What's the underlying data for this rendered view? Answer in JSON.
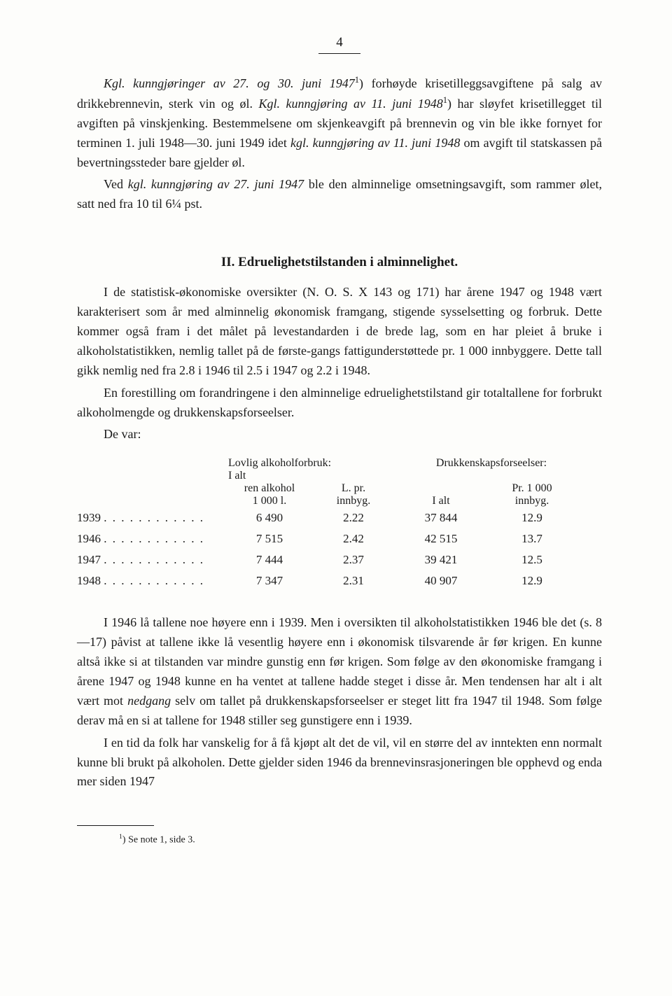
{
  "pageNumber": "4",
  "para1_a": "Kgl. kunngjøringer av 27. og 30. juni 1947",
  "para1_b": ") forhøyde krisetilleggsavgiftene på salg av drikkebrennevin, sterk vin og øl. ",
  "para1_c": "Kgl. kunngjøring av 11. juni 1948",
  "para1_d": ") har sløyfet krisetillegget til avgiften på vinskjenking. Bestemmelsene om skjenkeavgift på brennevin og vin ble ikke fornyet for terminen 1. juli 1948—30. juni 1949 idet ",
  "para1_e": "kgl. kunngjøring av 11. juni 1948",
  "para1_f": " om avgift til statskassen på bevertningssteder bare gjelder øl.",
  "para2_a": "Ved ",
  "para2_b": "kgl. kunngjøring av 27. juni 1947",
  "para2_c": " ble den alminnelige omsetningsavgift, som rammer ølet, satt ned fra 10 til 6¼ pst.",
  "sectionTitle": "II.  Edruelighetstilstanden i alminnelighet.",
  "para3": "I de statistisk-økonomiske oversikter (N. O. S. X 143 og 171) har årene 1947 og 1948 vært karakterisert som år med alminnelig økonomisk framgang, stigende sysselsetting og forbruk. Dette kommer også fram i det målet på levestandarden i de brede lag, som en har pleiet å bruke i alkoholstatistikken, nemlig tallet på de første-gangs fattigunderstøttede pr. 1 000 innbyggere. Dette tall gikk nemlig ned fra 2.8 i 1946 til 2.5 i 1947 og 2.2 i 1948.",
  "para4": "En forestilling om forandringene i den alminnelige edruelighetstilstand gir totaltallene for forbrukt alkoholmengde og drukkenskapsforseelser.",
  "para5": "De var:",
  "table": {
    "group1Label": "Lovlig alkoholforbruk:",
    "group2Label": "Drukkenskapsforseelser:",
    "subIalt": "I alt",
    "colA1": "ren alkohol",
    "colA2": "1 000 l.",
    "colB1": "L. pr.",
    "colB2": "innbyg.",
    "colC": "I alt",
    "colD1": "Pr. 1 000",
    "colD2": "innbyg.",
    "rows": [
      {
        "year": "1939",
        "a": "6 490",
        "b": "2.22",
        "c": "37 844",
        "d": "12.9"
      },
      {
        "year": "1946",
        "a": "7 515",
        "b": "2.42",
        "c": "42 515",
        "d": "13.7"
      },
      {
        "year": "1947",
        "a": "7 444",
        "b": "2.37",
        "c": "39 421",
        "d": "12.5"
      },
      {
        "year": "1948",
        "a": "7 347",
        "b": "2.31",
        "c": "40 907",
        "d": "12.9"
      }
    ]
  },
  "para6_a": "I 1946 lå tallene noe høyere enn i 1939. Men i oversikten til alkoholstatistikken 1946 ble det (s. 8—17) påvist at tallene ikke lå vesentlig høyere enn i økonomisk tilsvarende år før krigen. En kunne altså ikke si at tilstanden var mindre gunstig enn før krigen. Som følge av den økonomiske framgang i årene 1947 og 1948 kunne en ha ventet at tallene hadde steget i disse år. Men tendensen har alt i alt vært mot ",
  "para6_b": "nedgang",
  "para6_c": " selv om tallet på drukkenskapsforseelser er steget litt fra 1947 til 1948. Som følge derav må en si at tallene for 1948 stiller seg gunstigere enn i 1939.",
  "para7": "I en tid da folk har vanskelig for å få kjøpt alt det de vil, vil en større del av inntekten enn normalt kunne bli brukt på alkoholen. Dette gjelder siden 1946 da brennevinsrasjoneringen ble opphevd og enda mer siden 1947",
  "footnoteMarker": "1",
  "footnoteText": ")  Se note 1, side 3."
}
